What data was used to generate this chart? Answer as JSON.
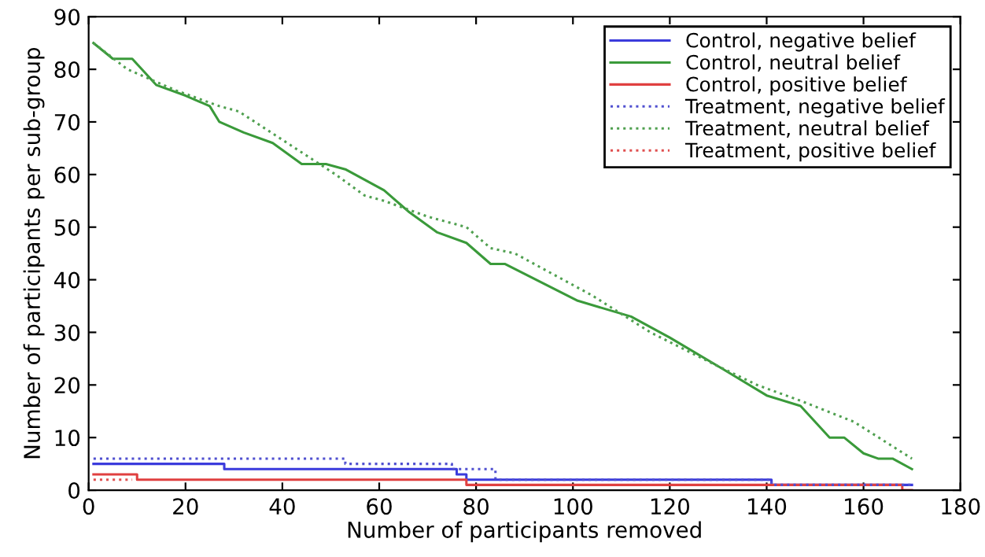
{
  "chart_data": {
    "type": "line",
    "xlabel": "Number of participants removed",
    "ylabel": "Number of participants per sub-group",
    "xlim": [
      0,
      180
    ],
    "ylim": [
      0,
      90
    ],
    "xticks": [
      0,
      20,
      40,
      60,
      80,
      100,
      120,
      140,
      160,
      180
    ],
    "yticks": [
      0,
      10,
      20,
      30,
      40,
      50,
      60,
      70,
      80,
      90
    ],
    "legend": "top right",
    "grid": false,
    "series": [
      {
        "name": "Control, negative belief",
        "type": "step",
        "color": "#3b3bdc",
        "line_style": "solid",
        "x": [
          1,
          27,
          28,
          74,
          76,
          78,
          140,
          141,
          170
        ],
        "values": [
          5,
          5,
          4,
          4,
          3,
          2,
          2,
          1,
          1
        ]
      },
      {
        "name": "Control, neutral belief",
        "color": "#3a9a3a",
        "line_style": "solid",
        "x": [
          1,
          5,
          9,
          14,
          20,
          25,
          27,
          32,
          38,
          44,
          49,
          53,
          61,
          66,
          72,
          78,
          83,
          86,
          101,
          112,
          120,
          131,
          140,
          147,
          153,
          156,
          160,
          163,
          166,
          170
        ],
        "values": [
          85,
          82,
          82,
          77,
          75,
          73,
          70,
          68,
          66,
          62,
          62,
          61,
          57,
          53,
          49,
          47,
          43,
          43,
          36,
          33,
          29,
          23,
          18,
          16,
          10,
          10,
          7,
          6,
          6,
          4
        ]
      },
      {
        "name": "Control, positive belief",
        "type": "step",
        "color": "#e04040",
        "line_style": "solid",
        "x": [
          1,
          9,
          10,
          77,
          78,
          167,
          168,
          170
        ],
        "values": [
          3,
          3,
          2,
          2,
          1,
          1,
          0,
          0
        ]
      },
      {
        "name": "Treatment, negative belief",
        "type": "step",
        "color": "#5050d0",
        "line_style": "dotted",
        "x": [
          1,
          52,
          53,
          72,
          75,
          83,
          84,
          140,
          141,
          170
        ],
        "values": [
          6,
          6,
          5,
          5,
          4,
          4,
          2,
          2,
          1,
          1
        ]
      },
      {
        "name": "Treatment, neutral belief",
        "color": "#50a050",
        "line_style": "dotted",
        "x": [
          1,
          8,
          18,
          27,
          31,
          41,
          46,
          51,
          57,
          61,
          70,
          78,
          83,
          88,
          104,
          116,
          129,
          138,
          147,
          158,
          170
        ],
        "values": [
          85,
          80,
          76,
          73,
          72,
          66,
          63,
          60,
          56,
          55,
          52,
          50,
          46,
          45,
          37,
          30,
          24,
          20,
          17,
          13,
          6
        ]
      },
      {
        "name": "Treatment, positive belief",
        "type": "step",
        "color": "#e05050",
        "line_style": "dotted",
        "x": [
          1,
          9
        ],
        "values": [
          2,
          2
        ]
      }
    ]
  }
}
